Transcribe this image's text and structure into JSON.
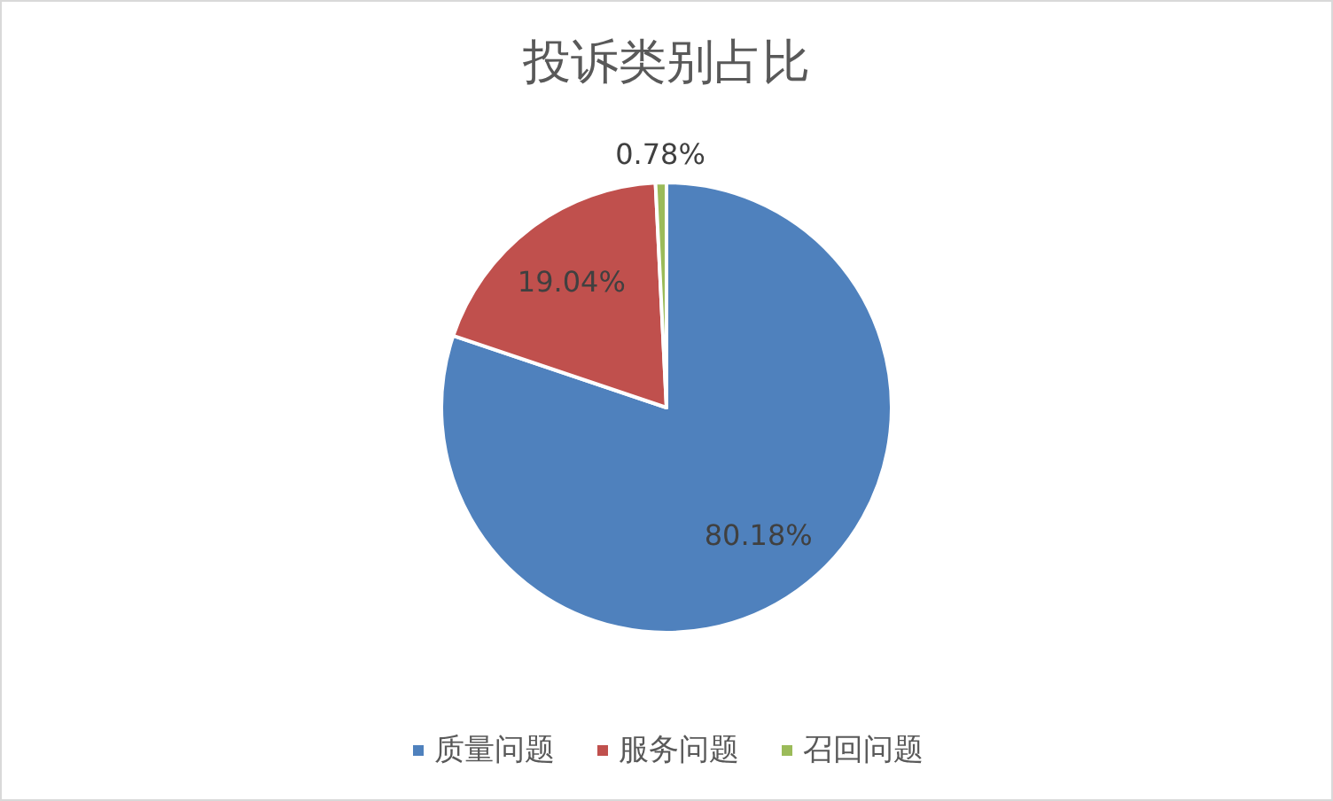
{
  "chart_data": {
    "type": "pie",
    "title": "投诉类别占比",
    "categories": [
      "质量问题",
      "服务问题",
      "召回问题"
    ],
    "values": [
      80.18,
      19.04,
      0.78
    ],
    "colors": [
      "#4f81bd",
      "#c0504d",
      "#9bbb59"
    ],
    "value_labels": [
      "80.18%",
      "19.04%",
      "0.78%"
    ],
    "legend": "bottom"
  }
}
